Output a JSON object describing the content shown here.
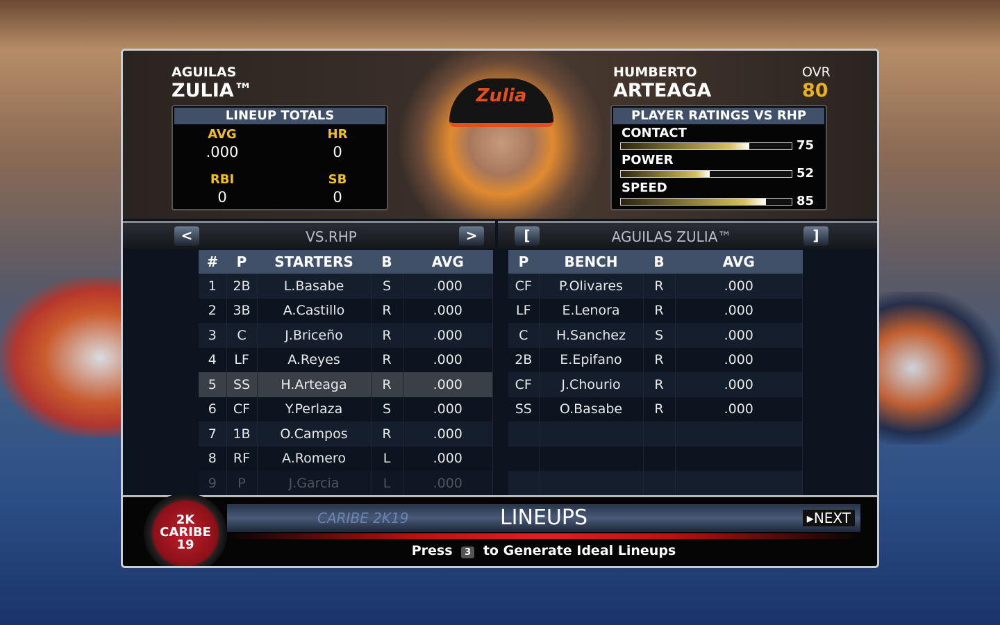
{
  "team": {
    "line1": "AGUILAS",
    "line2": "ZULIA™",
    "cap_text": "Zulia"
  },
  "totals": {
    "title": "LINEUP TOTALS",
    "avg_label": "AVG",
    "avg": ".000",
    "hr_label": "HR",
    "hr": "0",
    "rbi_label": "RBI",
    "rbi": "0",
    "sb_label": "SB",
    "sb": "0"
  },
  "player": {
    "first": "HUMBERTO",
    "last": "ARTEAGA",
    "ovr_label": "OVR",
    "ovr": "80"
  },
  "ratings": {
    "title": "PLAYER RATINGS VS RHP",
    "items": [
      {
        "label": "CONTACT",
        "value": "75"
      },
      {
        "label": "POWER",
        "value": "52"
      },
      {
        "label": "SPEED",
        "value": "85"
      }
    ]
  },
  "nav": {
    "left_prev": "<",
    "left_title": "VS.RHP",
    "left_next": ">",
    "right_prev": "[",
    "right_title": "AGUILAS ZULIA™",
    "right_next": "]"
  },
  "starters": {
    "headers": [
      "#",
      "P",
      "STARTERS",
      "B",
      "AVG"
    ],
    "rows": [
      [
        "1",
        "2B",
        "L.Basabe",
        "S",
        ".000"
      ],
      [
        "2",
        "3B",
        "A.Castillo",
        "R",
        ".000"
      ],
      [
        "3",
        "C",
        "J.Briceño",
        "R",
        ".000"
      ],
      [
        "4",
        "LF",
        "A.Reyes",
        "R",
        ".000"
      ],
      [
        "5",
        "SS",
        "H.Arteaga",
        "R",
        ".000"
      ],
      [
        "6",
        "CF",
        "Y.Perlaza",
        "S",
        ".000"
      ],
      [
        "7",
        "1B",
        "O.Campos",
        "R",
        ".000"
      ],
      [
        "8",
        "RF",
        "A.Romero",
        "L",
        ".000"
      ],
      [
        "9",
        "P",
        "J.Garcia",
        "L",
        ".000"
      ]
    ],
    "selected_index": 4
  },
  "bench": {
    "headers": [
      "P",
      "BENCH",
      "B",
      "AVG"
    ],
    "rows": [
      [
        "CF",
        "P.Olivares",
        "R",
        ".000"
      ],
      [
        "LF",
        "E.Lenora",
        "R",
        ".000"
      ],
      [
        "C",
        "H.Sanchez",
        "S",
        ".000"
      ],
      [
        "2B",
        "E.Epifano",
        "R",
        ".000"
      ],
      [
        "CF",
        "J.Chourio",
        "R",
        ".000"
      ],
      [
        "SS",
        "O.Basabe",
        "R",
        ".000"
      ],
      [
        "",
        "",
        "",
        ""
      ],
      [
        "",
        "",
        "",
        ""
      ],
      [
        "",
        "",
        "",
        ""
      ]
    ]
  },
  "footer": {
    "title": "LINEUPS",
    "next": "NEXT",
    "press": "Press",
    "key": "3",
    "hint": "to Generate Ideal Lineups",
    "logo_l1": "2K",
    "logo_l2": "CARIBE",
    "logo_l3": "19",
    "banner": "CARIBE 2K19"
  },
  "colors": {
    "accent": "#f0c020",
    "header_row": "#3f5068",
    "ovr": "#e8b020"
  }
}
